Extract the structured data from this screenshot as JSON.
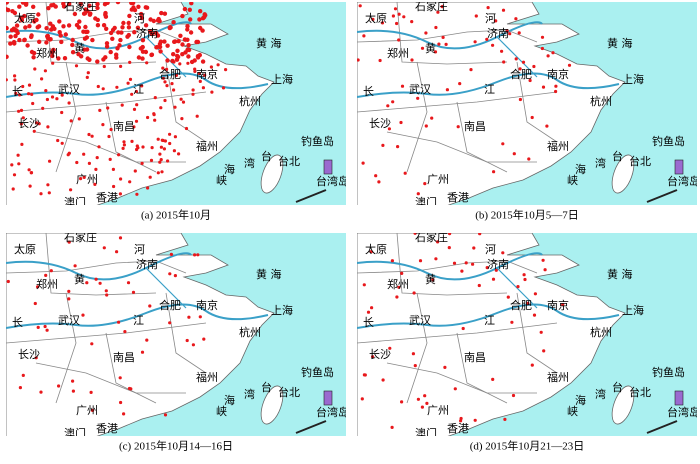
{
  "panels": [
    {
      "caption": "(a) 2015年10月",
      "labels": [
        "太原",
        "石家庄",
        "河",
        "济南",
        "郑州",
        "黄",
        "黄 海",
        "合肥",
        "南京",
        "上海",
        "长",
        "武汉",
        "江",
        "杭州",
        "长沙",
        "南昌",
        "福州",
        "钓鱼岛",
        "台",
        "湾",
        "台北",
        "海",
        "峡",
        "台湾岛",
        "广州",
        "香港",
        "澳门"
      ]
    },
    {
      "caption": "(b) 2015年10月5—7日",
      "labels": [
        "太原",
        "石家庄",
        "河",
        "济南",
        "郑州",
        "黄",
        "黄 海",
        "合肥",
        "南京",
        "上海",
        "长",
        "武汉",
        "江",
        "杭州",
        "长沙",
        "南昌",
        "福州",
        "钓鱼岛",
        "台",
        "湾",
        "台北",
        "海",
        "峡",
        "台湾岛",
        "广州",
        "香港",
        "澳门"
      ]
    },
    {
      "caption": "(c) 2015年10月14—16日",
      "labels": [
        "太原",
        "石家庄",
        "河",
        "济南",
        "郑州",
        "黄",
        "黄 海",
        "合肥",
        "南京",
        "上海",
        "长",
        "武汉",
        "江",
        "杭州",
        "长沙",
        "南昌",
        "福州",
        "钓鱼岛",
        "台",
        "湾",
        "台北",
        "海",
        "峡",
        "台湾岛",
        "广州",
        "香港",
        "澳门"
      ]
    },
    {
      "caption": "(d) 2015年10月21—23日",
      "labels": [
        "太原",
        "石家庄",
        "河",
        "济南",
        "郑州",
        "黄",
        "黄 海",
        "合肥",
        "南京",
        "上海",
        "长",
        "武汉",
        "江",
        "杭州",
        "长沙",
        "南昌",
        "福州",
        "钓鱼岛",
        "台",
        "湾",
        "台北",
        "海",
        "峡",
        "台湾岛",
        "广州",
        "香港",
        "澳门"
      ]
    }
  ]
}
